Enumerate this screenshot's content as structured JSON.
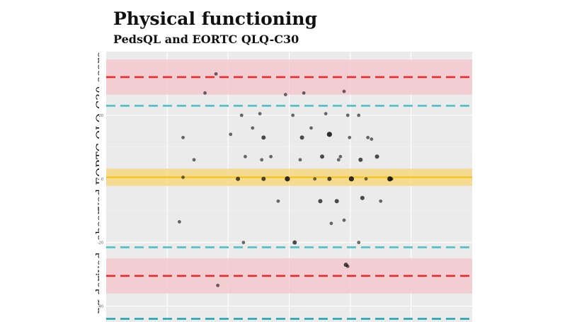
{
  "chart_data": {
    "type": "scatter",
    "title": "Physical functioning",
    "subtitle": "PedsQL and EORTC QLQ-C30",
    "xlabel": "",
    "ylabel": "ng-derived - observed EORTC QLQ-C30 score",
    "xlim": [
      0,
      100
    ],
    "ylim": [
      -45,
      40
    ],
    "y_ticks": [
      -40,
      -20,
      0,
      20
    ],
    "y_tick_labels": [
      "-40",
      "-20",
      "0",
      "20"
    ],
    "x_gridlines": [
      16.7,
      33.3,
      50,
      66.7,
      83.3
    ],
    "grid": true,
    "reference_lines": [
      {
        "y": 0.5,
        "color": "#f4c20d",
        "style": "solid",
        "band": [
          -2.2,
          3.2
        ],
        "band_color": "#f7d77a"
      },
      {
        "y": 32,
        "color": "#ee2a2a",
        "style": "dashed",
        "band": [
          26.5,
          37.5
        ],
        "band_color": "#f4c6cc"
      },
      {
        "y": -30.5,
        "color": "#ee2a2a",
        "style": "dashed",
        "band": [
          -36,
          -25
        ],
        "band_color": "#f4c6cc"
      },
      {
        "y": 23,
        "color": "#4fc0c8",
        "style": "dashed"
      },
      {
        "y": -21.5,
        "color": "#4fc0c8",
        "style": "dashed"
      },
      {
        "y": -44,
        "color": "#1aa5b5",
        "style": "dashed"
      }
    ],
    "points": [
      {
        "x": 20,
        "y": -13.5,
        "n": 1
      },
      {
        "x": 21,
        "y": 13,
        "n": 1
      },
      {
        "x": 21,
        "y": 0.5,
        "n": 1
      },
      {
        "x": 24,
        "y": 6,
        "n": 1
      },
      {
        "x": 27,
        "y": 27,
        "n": 1
      },
      {
        "x": 30,
        "y": 33,
        "n": 1
      },
      {
        "x": 30.5,
        "y": -33.5,
        "n": 1
      },
      {
        "x": 34,
        "y": 14,
        "n": 1
      },
      {
        "x": 36,
        "y": 0,
        "n": 2
      },
      {
        "x": 37,
        "y": 20,
        "n": 1
      },
      {
        "x": 37.5,
        "y": -20,
        "n": 1
      },
      {
        "x": 38,
        "y": 7,
        "n": 1
      },
      {
        "x": 40,
        "y": 16,
        "n": 1
      },
      {
        "x": 42,
        "y": 20.5,
        "n": 1
      },
      {
        "x": 42.5,
        "y": 6,
        "n": 1
      },
      {
        "x": 43,
        "y": 13,
        "n": 2
      },
      {
        "x": 43,
        "y": 0,
        "n": 2
      },
      {
        "x": 45,
        "y": 7,
        "n": 1
      },
      {
        "x": 47,
        "y": -7,
        "n": 1
      },
      {
        "x": 49,
        "y": 26.5,
        "n": 1
      },
      {
        "x": 49.5,
        "y": 0,
        "n": 3
      },
      {
        "x": 51,
        "y": 20,
        "n": 1
      },
      {
        "x": 51.5,
        "y": -20,
        "n": 2
      },
      {
        "x": 53,
        "y": 6,
        "n": 1
      },
      {
        "x": 53.5,
        "y": 13,
        "n": 2
      },
      {
        "x": 54,
        "y": 27,
        "n": 1
      },
      {
        "x": 56,
        "y": 16,
        "n": 1
      },
      {
        "x": 57,
        "y": 0,
        "n": 1
      },
      {
        "x": 58.5,
        "y": -7,
        "n": 2
      },
      {
        "x": 59,
        "y": 7,
        "n": 2
      },
      {
        "x": 60,
        "y": 20.5,
        "n": 1
      },
      {
        "x": 61,
        "y": 14,
        "n": 3
      },
      {
        "x": 61,
        "y": 0,
        "n": 2
      },
      {
        "x": 61.5,
        "y": -14,
        "n": 1
      },
      {
        "x": 63,
        "y": -7,
        "n": 2
      },
      {
        "x": 63.5,
        "y": 6,
        "n": 1
      },
      {
        "x": 64,
        "y": 7,
        "n": 1
      },
      {
        "x": 65,
        "y": 27.5,
        "n": 1
      },
      {
        "x": 65,
        "y": -13,
        "n": 1
      },
      {
        "x": 65.5,
        "y": -27,
        "n": 2
      },
      {
        "x": 66,
        "y": -27.5,
        "n": 1
      },
      {
        "x": 66,
        "y": 20,
        "n": 1
      },
      {
        "x": 66.5,
        "y": 13,
        "n": 1
      },
      {
        "x": 67,
        "y": 0,
        "n": 3
      },
      {
        "x": 69,
        "y": -20,
        "n": 1
      },
      {
        "x": 69,
        "y": 20,
        "n": 1
      },
      {
        "x": 69.5,
        "y": 6,
        "n": 2
      },
      {
        "x": 70,
        "y": -6,
        "n": 2
      },
      {
        "x": 71,
        "y": 0,
        "n": 1
      },
      {
        "x": 71.5,
        "y": 13,
        "n": 1
      },
      {
        "x": 72.5,
        "y": 12.5,
        "n": 1
      },
      {
        "x": 74,
        "y": 7,
        "n": 2
      },
      {
        "x": 75,
        "y": -7,
        "n": 1
      },
      {
        "x": 77.5,
        "y": 0,
        "n": 3
      },
      {
        "x": 78,
        "y": 0,
        "n": 1
      }
    ]
  }
}
